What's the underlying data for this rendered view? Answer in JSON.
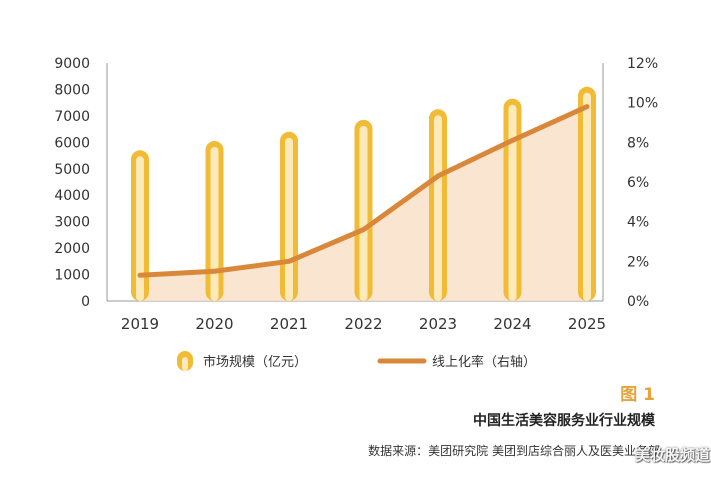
{
  "chart_data": {
    "type": "bar",
    "categories": [
      "2019",
      "2020",
      "2021",
      "2022",
      "2023",
      "2024",
      "2025"
    ],
    "series": [
      {
        "name": "市场规模（亿元）",
        "type": "bar",
        "axis": "left",
        "values": [
          5700,
          6050,
          6400,
          6850,
          7250,
          7650,
          8100
        ]
      },
      {
        "name": "线上化率（右轴）",
        "type": "line",
        "axis": "right",
        "values": [
          1.3,
          1.5,
          2.0,
          3.6,
          6.3,
          8.1,
          9.8
        ]
      }
    ],
    "y_left": {
      "ticks": [
        "0",
        "1000",
        "2000",
        "3000",
        "4000",
        "5000",
        "6000",
        "7000",
        "8000",
        "9000"
      ],
      "ylim": [
        0,
        9000
      ]
    },
    "y_right": {
      "ticks": [
        "0%",
        "2%",
        "4%",
        "6%",
        "8%",
        "10%",
        "12%"
      ],
      "ylim": [
        0,
        12
      ]
    },
    "legend_placement": "bottom",
    "colors": {
      "bar": "#f2bb35",
      "bar_inner": "#fde9b9",
      "line": "#d9883a",
      "area": "#f9e0c9"
    }
  },
  "figure": {
    "label": "图 1",
    "title": "中国生活美容服务业行业规模",
    "source": "数据来源：美团研究院  美团到店综合丽人及医美业务部"
  },
  "watermark": "美妆股频道"
}
